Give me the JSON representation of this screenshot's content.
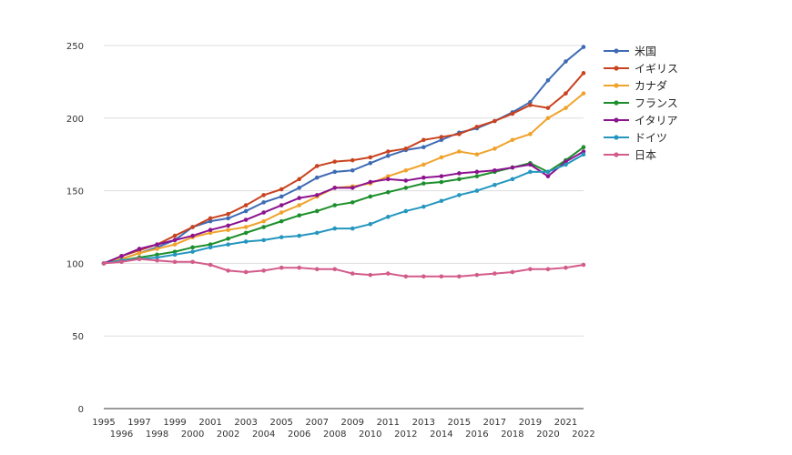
{
  "chart_data": {
    "type": "line",
    "title": "",
    "xlabel": "",
    "ylabel": "",
    "ylim": [
      0,
      250
    ],
    "yticks": [
      0,
      50,
      100,
      150,
      200,
      250
    ],
    "grid": true,
    "legend_position": "right",
    "x": [
      1995,
      1996,
      1997,
      1998,
      1999,
      2000,
      2001,
      2002,
      2003,
      2004,
      2005,
      2006,
      2007,
      2008,
      2009,
      2010,
      2011,
      2012,
      2013,
      2014,
      2015,
      2016,
      2017,
      2018,
      2019,
      2020,
      2021,
      2022
    ],
    "x_tick_labels": [
      "1995",
      "1996",
      "1997",
      "1998",
      "1999",
      "2000",
      "2001",
      "2002",
      "2003",
      "2004",
      "2005",
      "2006",
      "2007",
      "2008",
      "2009",
      "2010",
      "2011",
      "2012",
      "2013",
      "2014",
      "2015",
      "2016",
      "2017",
      "2018",
      "2019",
      "2020",
      "2021",
      "2022"
    ],
    "series": [
      {
        "name": "米国",
        "color": "#3f6bb4",
        "values": [
          100,
          103,
          107,
          111,
          116,
          125,
          129,
          131,
          136,
          142,
          146,
          152,
          159,
          163,
          164,
          169,
          174,
          178,
          180,
          185,
          190,
          193,
          198,
          204,
          211,
          226,
          239,
          249
        ]
      },
      {
        "name": "イギリス",
        "color": "#c8431f",
        "values": [
          100,
          105,
          109,
          113,
          119,
          125,
          131,
          134,
          140,
          147,
          151,
          158,
          167,
          170,
          171,
          173,
          177,
          179,
          185,
          187,
          189,
          194,
          198,
          203,
          209,
          207,
          217,
          231
        ]
      },
      {
        "name": "カナダ",
        "color": "#f0a32c",
        "values": [
          100,
          103,
          107,
          110,
          113,
          118,
          121,
          123,
          125,
          129,
          135,
          140,
          146,
          152,
          153,
          155,
          160,
          164,
          168,
          173,
          177,
          175,
          179,
          185,
          189,
          200,
          207,
          217
        ]
      },
      {
        "name": "フランス",
        "color": "#1c8f2c",
        "values": [
          100,
          102,
          104,
          106,
          108,
          111,
          113,
          117,
          121,
          125,
          129,
          133,
          136,
          140,
          142,
          146,
          149,
          152,
          155,
          156,
          158,
          160,
          163,
          166,
          169,
          163,
          171,
          180
        ]
      },
      {
        "name": "イタリア",
        "color": "#8c138f",
        "values": [
          100,
          105,
          110,
          113,
          116,
          119,
          123,
          126,
          130,
          135,
          140,
          145,
          147,
          152,
          152,
          156,
          158,
          157,
          159,
          160,
          162,
          163,
          164,
          166,
          168,
          160,
          170,
          177
        ]
      },
      {
        "name": "ドイツ",
        "color": "#2496bf",
        "values": [
          100,
          102,
          103,
          104,
          106,
          108,
          111,
          113,
          115,
          116,
          118,
          119,
          121,
          124,
          124,
          127,
          132,
          136,
          139,
          143,
          147,
          150,
          154,
          158,
          163,
          163,
          168,
          175
        ]
      },
      {
        "name": "日本",
        "color": "#d35b8a",
        "values": [
          100,
          101,
          103,
          102,
          101,
          101,
          99,
          95,
          94,
          95,
          97,
          97,
          96,
          96,
          93,
          92,
          93,
          91,
          91,
          91,
          91,
          92,
          93,
          94,
          96,
          96,
          97,
          99
        ]
      }
    ]
  }
}
